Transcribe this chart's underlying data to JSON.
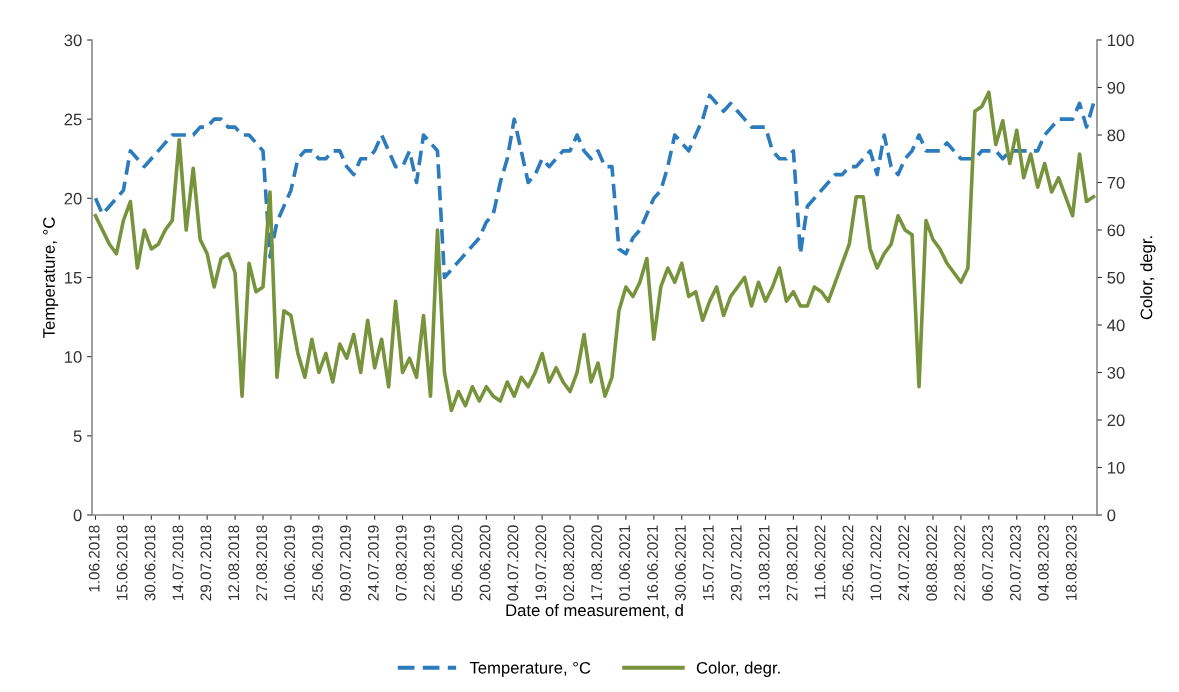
{
  "chart_data": {
    "type": "line",
    "xlabel": "Date of measurement, d",
    "ylabel": "Temperature, °C",
    "y2label": "Color, degr.",
    "categories": [
      "1.06.2018",
      null,
      null,
      null,
      "15.06.2018",
      null,
      null,
      null,
      "30.06.2018",
      null,
      null,
      null,
      "14.07.2018",
      null,
      null,
      null,
      "29.07.2018",
      null,
      null,
      null,
      "12.08.2018",
      null,
      null,
      null,
      "27.08.2018",
      null,
      null,
      null,
      "10.06.2019",
      null,
      null,
      null,
      "25.06.2019",
      null,
      null,
      null,
      "09.07.2019",
      null,
      null,
      null,
      "24.07.2019",
      null,
      null,
      null,
      "07.08.2019",
      null,
      null,
      null,
      "22.08.2019",
      null,
      null,
      null,
      "05.06.2020",
      null,
      null,
      null,
      "20.06.2020",
      null,
      null,
      null,
      "04.07.2020",
      null,
      null,
      null,
      "19.07.2020",
      null,
      null,
      null,
      "02.08.2020",
      null,
      null,
      null,
      "17.08.2020",
      null,
      null,
      null,
      "01.06.2021",
      null,
      null,
      null,
      "16.06.2021",
      null,
      null,
      null,
      "30.06.2021",
      null,
      null,
      null,
      "15.07.2021",
      null,
      null,
      null,
      "29.07.2021",
      null,
      null,
      null,
      "13.08.2021",
      null,
      null,
      null,
      "27.08.2021",
      null,
      null,
      null,
      "11.06.2022",
      null,
      null,
      null,
      "25.06.2022",
      null,
      null,
      null,
      "10.07.2022",
      null,
      null,
      null,
      "24.07.2022",
      null,
      null,
      null,
      "08.08.2022",
      null,
      null,
      null,
      "22.08.2022",
      null,
      null,
      null,
      "06.07.2023",
      null,
      null,
      null,
      "20.07.2023",
      null,
      null,
      null,
      "04.08.2023",
      null,
      null,
      null,
      "18.08.2023",
      null,
      null,
      null
    ],
    "ylim": [
      0,
      30
    ],
    "yticks": [
      0,
      5,
      10,
      15,
      20,
      25,
      30
    ],
    "y2lim": [
      0,
      100
    ],
    "y2ticks": [
      0,
      10,
      20,
      30,
      40,
      50,
      60,
      70,
      80,
      90,
      100
    ],
    "grid": false,
    "legend": "bottom",
    "series": [
      {
        "name": "Temperature, °C",
        "color": "#2b7bbd",
        "line_style": "dashed",
        "values": [
          20,
          19,
          19.5,
          20,
          20.5,
          23,
          22.5,
          22,
          22.5,
          23,
          23.5,
          24,
          24,
          24,
          24,
          24.5,
          24.5,
          25,
          25,
          24.5,
          24.5,
          24,
          24,
          23.5,
          23,
          16.3,
          18.5,
          19.5,
          20.5,
          22.5,
          23,
          23,
          22.5,
          22.5,
          23,
          23,
          22,
          21.5,
          22.5,
          22.5,
          23,
          24,
          23,
          22,
          22,
          23,
          21,
          24,
          23.5,
          23,
          15,
          15.5,
          16,
          16.5,
          17,
          17.5,
          18.5,
          19,
          21,
          22.5,
          25,
          23,
          21,
          21.5,
          22.5,
          22,
          22.5,
          23,
          23,
          24,
          23,
          22.5,
          23,
          22,
          22,
          16.8,
          16.5,
          17.5,
          18,
          19,
          20,
          20.5,
          22,
          24,
          23.5,
          23,
          24,
          25,
          26.5,
          26,
          25.5,
          26,
          25.5,
          25,
          24.5,
          24.5,
          24.5,
          23,
          22.5,
          22.5,
          23,
          16.5,
          19.5,
          20,
          20.5,
          21,
          21.5,
          21.5,
          22,
          22,
          22.5,
          23,
          21.5,
          24,
          22,
          21.5,
          22.5,
          23,
          24,
          23,
          23,
          23,
          23.5,
          23,
          22.5,
          22.5,
          22.5,
          23,
          23,
          23,
          22.5,
          23,
          23,
          23,
          23,
          23,
          24,
          24.5,
          25,
          25,
          25,
          26,
          24.5,
          26
        ]
      },
      {
        "name": "Color, degr.",
        "color": "#77933c",
        "line_style": "solid",
        "axis": "y2",
        "values": [
          63,
          60,
          57,
          55,
          62,
          66,
          52,
          60,
          56,
          57,
          60,
          62,
          79,
          60,
          73,
          58,
          55,
          48,
          54,
          55,
          51,
          25,
          53,
          47,
          48,
          68,
          29,
          43,
          42,
          34,
          29,
          37,
          30,
          34,
          28,
          36,
          33,
          38,
          30,
          41,
          31,
          37,
          27,
          45,
          30,
          33,
          29,
          42,
          25,
          60,
          30,
          22,
          26,
          23,
          27,
          24,
          27,
          25,
          24,
          28,
          25,
          29,
          27,
          30,
          34,
          28,
          31,
          28,
          26,
          30,
          38,
          28,
          32,
          25,
          29,
          43,
          48,
          46,
          49,
          54,
          37,
          48,
          52,
          49,
          53,
          46,
          47,
          41,
          45,
          48,
          42,
          46,
          48,
          50,
          44,
          49,
          45,
          48,
          52,
          45,
          47,
          44,
          44,
          48,
          47,
          45,
          49,
          53,
          57,
          67,
          67,
          56,
          52,
          55,
          57,
          63,
          60,
          59,
          27,
          62,
          58,
          56,
          53,
          51,
          49,
          52,
          85,
          86,
          89,
          78,
          83,
          74,
          81,
          71,
          76,
          69,
          74,
          68,
          71,
          67,
          63,
          76,
          66,
          67
        ]
      }
    ]
  }
}
